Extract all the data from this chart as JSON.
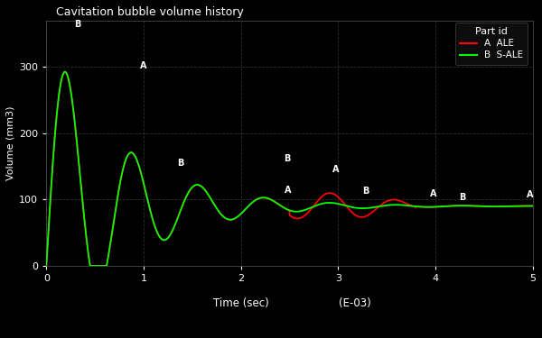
{
  "title": "Cavitation bubble volume history",
  "xlabel": "Time (sec)",
  "xlabel2": "(E-03)",
  "ylabel": "Volume (mm3)",
  "xlim": [
    0,
    5
  ],
  "ylim": [
    0,
    370
  ],
  "yticks": [
    0,
    100,
    200,
    300
  ],
  "xticks": [
    0,
    1,
    2,
    3,
    4,
    5
  ],
  "bg_color": "#000000",
  "grid_color": "#333333",
  "legend_title": "Part id",
  "legend_entries": [
    "A  ALE",
    "B  S-ALE"
  ],
  "legend_colors": [
    "#ff0000",
    "#00ff00"
  ],
  "ale_color": "#ff0000",
  "sale_color": "#00ff00",
  "annotations_A": [
    [
      1.0,
      290
    ],
    [
      2.48,
      102
    ],
    [
      2.98,
      134
    ],
    [
      3.98,
      97
    ],
    [
      4.97,
      95
    ]
  ],
  "annotations_B": [
    [
      0.32,
      352
    ],
    [
      1.38,
      143
    ],
    [
      2.48,
      150
    ],
    [
      3.28,
      101
    ],
    [
      4.28,
      91
    ]
  ]
}
